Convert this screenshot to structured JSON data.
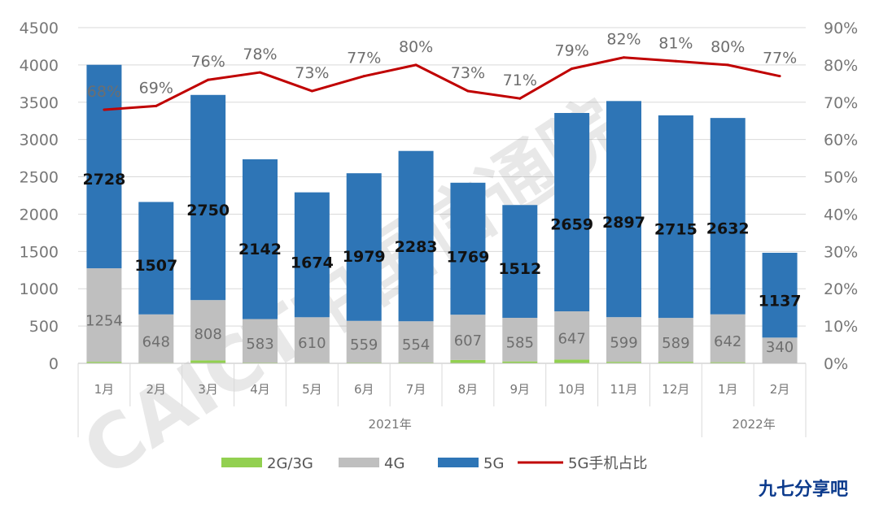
{
  "chart_data": {
    "type": "bar",
    "stacked": true,
    "categories": [
      "1月",
      "2月",
      "3月",
      "4月",
      "5月",
      "6月",
      "7月",
      "8月",
      "9月",
      "10月",
      "11月",
      "12月",
      "1月",
      "2月"
    ],
    "groups": [
      {
        "label": "2021年",
        "count": 12
      },
      {
        "label": "2022年",
        "count": 2
      }
    ],
    "series": [
      {
        "name": "2G/3G",
        "color": "#92d050",
        "values": [
          20,
          8,
          40,
          10,
          8,
          10,
          10,
          45,
          25,
          50,
          20,
          20,
          15,
          5
        ]
      },
      {
        "name": "4G",
        "color": "#bfbfbf",
        "values": [
          1254,
          648,
          808,
          583,
          610,
          559,
          554,
          607,
          585,
          647,
          599,
          589,
          642,
          340
        ]
      },
      {
        "name": "5G",
        "color": "#2e75b6",
        "values": [
          2728,
          1507,
          2750,
          2142,
          1674,
          1979,
          2283,
          1769,
          1512,
          2659,
          2897,
          2715,
          2632,
          1137
        ]
      }
    ],
    "line": {
      "name": "5G手机占比",
      "color": "#c00000",
      "values": [
        68,
        69,
        76,
        78,
        73,
        77,
        80,
        73,
        71,
        79,
        82,
        81,
        80,
        77
      ],
      "labels": [
        "68%",
        "69%",
        "76%",
        "78%",
        "73%",
        "77%",
        "80%",
        "73%",
        "71%",
        "79%",
        "82%",
        "81%",
        "80%",
        "77%"
      ]
    },
    "ylim": [
      0,
      4500
    ],
    "yticks": [
      "0",
      "500",
      "1000",
      "1500",
      "2000",
      "2500",
      "3000",
      "3500",
      "4000",
      "4500"
    ],
    "y2lim": [
      0,
      90
    ],
    "y2ticks": [
      "0%",
      "10%",
      "20%",
      "30%",
      "40%",
      "50%",
      "60%",
      "70%",
      "80%",
      "90%"
    ],
    "grid": true,
    "legend_position": "bottom",
    "legend": [
      "2G/3G",
      "4G",
      "5G",
      "5G手机占比"
    ]
  },
  "watermark": "CAICT中国信通院",
  "brand": "九七分享吧"
}
